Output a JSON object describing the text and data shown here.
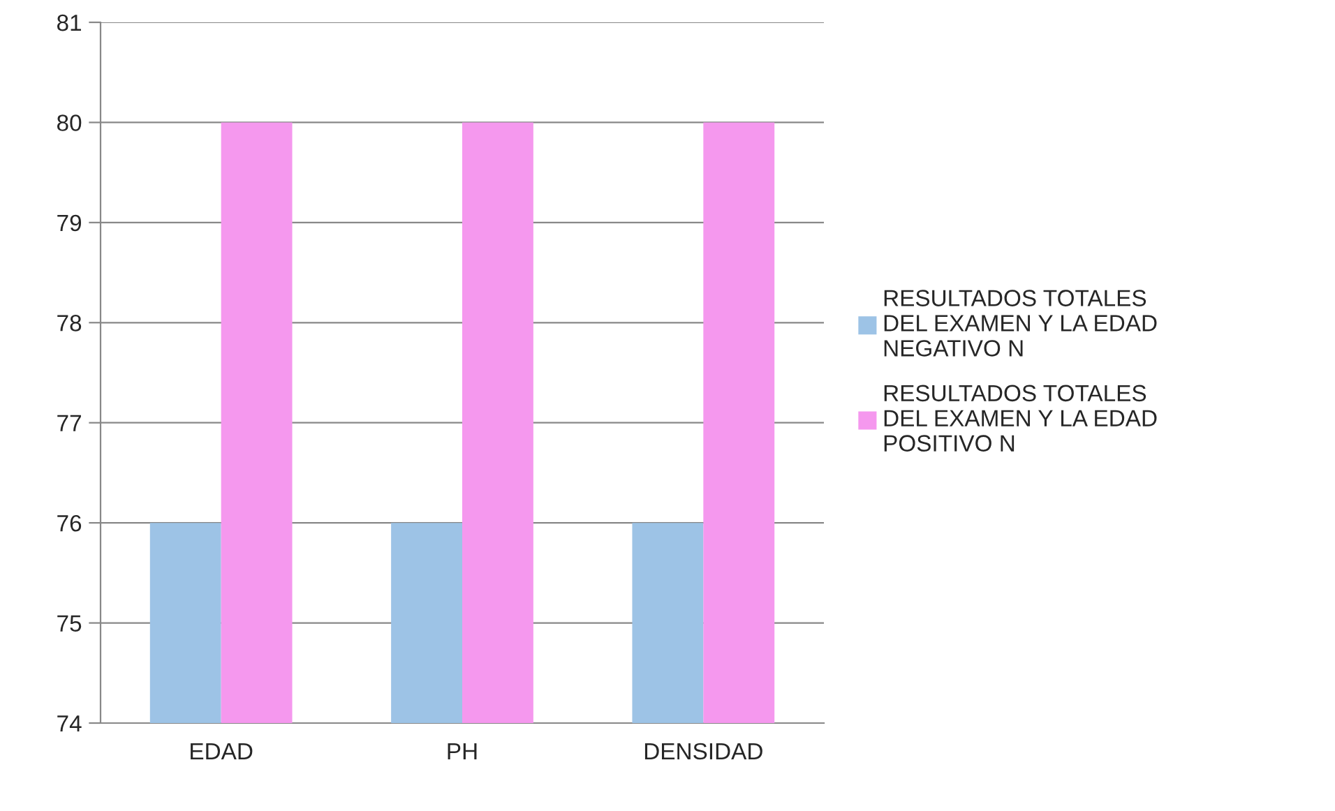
{
  "chart_data": {
    "type": "bar",
    "categories": [
      "EDAD",
      "PH",
      "DENSIDAD"
    ],
    "series": [
      {
        "name": "RESULTADOS TOTALES\nDEL EXAMEN Y LA EDAD\nNEGATIVO N",
        "color": "#9dc3e6",
        "values": [
          76,
          76,
          76
        ]
      },
      {
        "name": "RESULTADOS TOTALES\nDEL EXAMEN Y LA EDAD\nPOSITIVO N",
        "color": "#f598ee",
        "values": [
          80,
          80,
          80
        ]
      }
    ],
    "ylim": [
      74,
      81
    ],
    "yticks": [
      74,
      75,
      76,
      77,
      78,
      79,
      80,
      81
    ],
    "grid": "y",
    "legend": "right"
  }
}
